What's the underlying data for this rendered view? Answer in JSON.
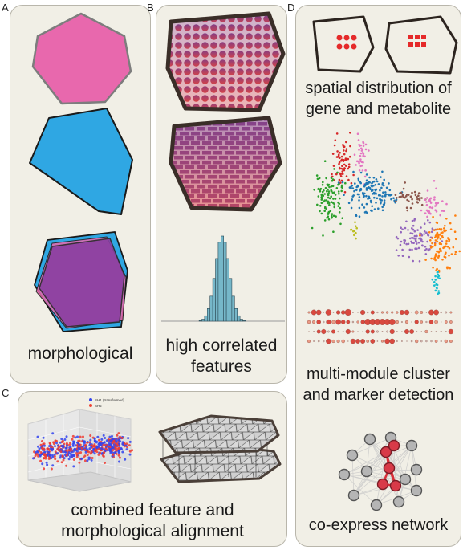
{
  "panels": {
    "a": {
      "letter": "A",
      "caption": "morphological"
    },
    "b": {
      "letter": "B",
      "caption_line1": "high correlated",
      "caption_line2": "features"
    },
    "c": {
      "letter": "C",
      "caption_line1": "combined feature and",
      "caption_line2": "morphological alignment",
      "legend": [
        "SH1 (transformed)",
        "SH2"
      ]
    },
    "d": {
      "letter": "D",
      "caption1_line1": "spatial distribution of",
      "caption1_line2": "gene and metabolite",
      "caption2_line1": "multi-module cluster",
      "caption2_line2": "and marker detection",
      "caption3": "co-express network"
    }
  },
  "colors": {
    "pink": "#e868ad",
    "blue": "#2fa7e3",
    "purple": "#8a3fa0",
    "outline": "#3a2e28",
    "red": "#e53b3b",
    "hist": "#76b7c9",
    "panel_bg": "#f1efe6"
  }
}
